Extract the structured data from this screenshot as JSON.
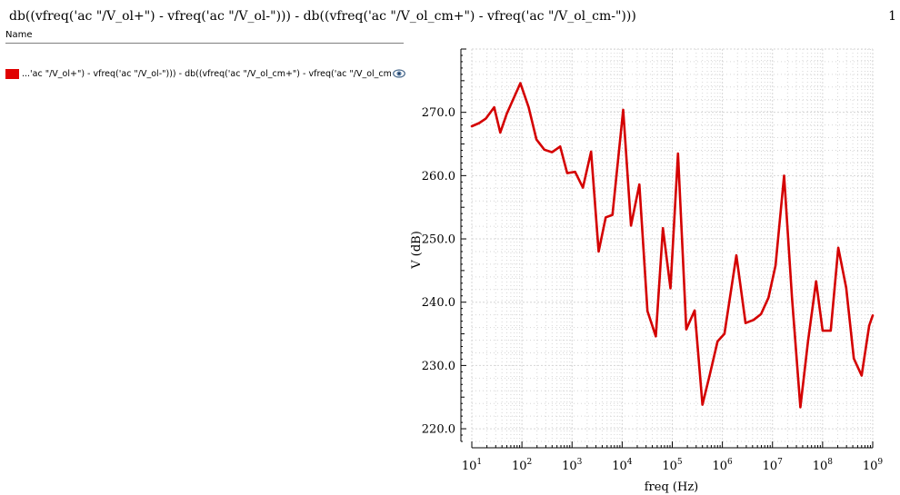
{
  "window": {
    "title": "db((vfreq('ac \"/V_ol+\") - vfreq('ac \"/V_ol-\"))) - db((vfreq('ac \"/V_ol_cm+\") - vfreq('ac \"/V_ol_cm-\")))",
    "page_number": "1"
  },
  "legend": {
    "header": "Name",
    "items": [
      {
        "label": "...'ac \"/V_ol+\") - vfreq('ac \"/V_ol-\"))) - db((vfreq('ac \"/V_ol_cm+\") - vfreq('ac \"/V_ol_cm-\")))",
        "color": "#e00000",
        "icon": "eye-icon"
      }
    ]
  },
  "chart_data": {
    "type": "line",
    "xlabel": "freq (Hz)",
    "ylabel": "V (dB)",
    "xscale": "log",
    "xlim": [
      10,
      1000000000
    ],
    "ylim": [
      218,
      280
    ],
    "x_tick_labels": [
      {
        "base": "10",
        "exp": "1"
      },
      {
        "base": "10",
        "exp": "2"
      },
      {
        "base": "10",
        "exp": "3"
      },
      {
        "base": "10",
        "exp": "4"
      },
      {
        "base": "10",
        "exp": "5"
      },
      {
        "base": "10",
        "exp": "6"
      },
      {
        "base": "10",
        "exp": "7"
      },
      {
        "base": "10",
        "exp": "8"
      },
      {
        "base": "10",
        "exp": "9"
      }
    ],
    "y_ticks": [
      220,
      230,
      240,
      250,
      260,
      270
    ],
    "y_tick_labels": [
      "220.0",
      "230.0",
      "240.0",
      "250.0",
      "260.0",
      "270.0"
    ],
    "grid": true,
    "series": [
      {
        "color": "#d40000",
        "x": [
          10,
          14,
          19,
          28,
          37,
          50,
          93,
          136,
          195,
          280,
          400,
          580,
          800,
          1150,
          1650,
          2400,
          3400,
          4700,
          6400,
          10500,
          15000,
          22000,
          32000,
          47000,
          65000,
          92000,
          130000,
          190000,
          280000,
          400000,
          560000,
          800000,
          1100000,
          1900000,
          2900000,
          4200000,
          5900000,
          8300000,
          11500000,
          17000000,
          24500000,
          36000000,
          51000000,
          74000000,
          100000000,
          145000000,
          205000000,
          295000000,
          420000000,
          600000000,
          850000000,
          1000000000
        ],
        "y": [
          267.8,
          268.3,
          269.0,
          270.8,
          266.8,
          269.8,
          274.6,
          270.8,
          265.7,
          264.1,
          263.7,
          264.6,
          260.4,
          260.6,
          258.1,
          263.8,
          248.0,
          253.4,
          253.8,
          270.4,
          252.1,
          258.6,
          238.6,
          234.6,
          251.7,
          242.2,
          263.5,
          235.7,
          238.7,
          223.8,
          228.5,
          233.8,
          235.0,
          247.4,
          236.7,
          237.2,
          238.1,
          240.7,
          245.8,
          260.0,
          240.7,
          223.4,
          233.8,
          243.3,
          235.5,
          235.5,
          248.6,
          242.3,
          231.1,
          228.4,
          236.3,
          237.9
        ]
      }
    ]
  }
}
